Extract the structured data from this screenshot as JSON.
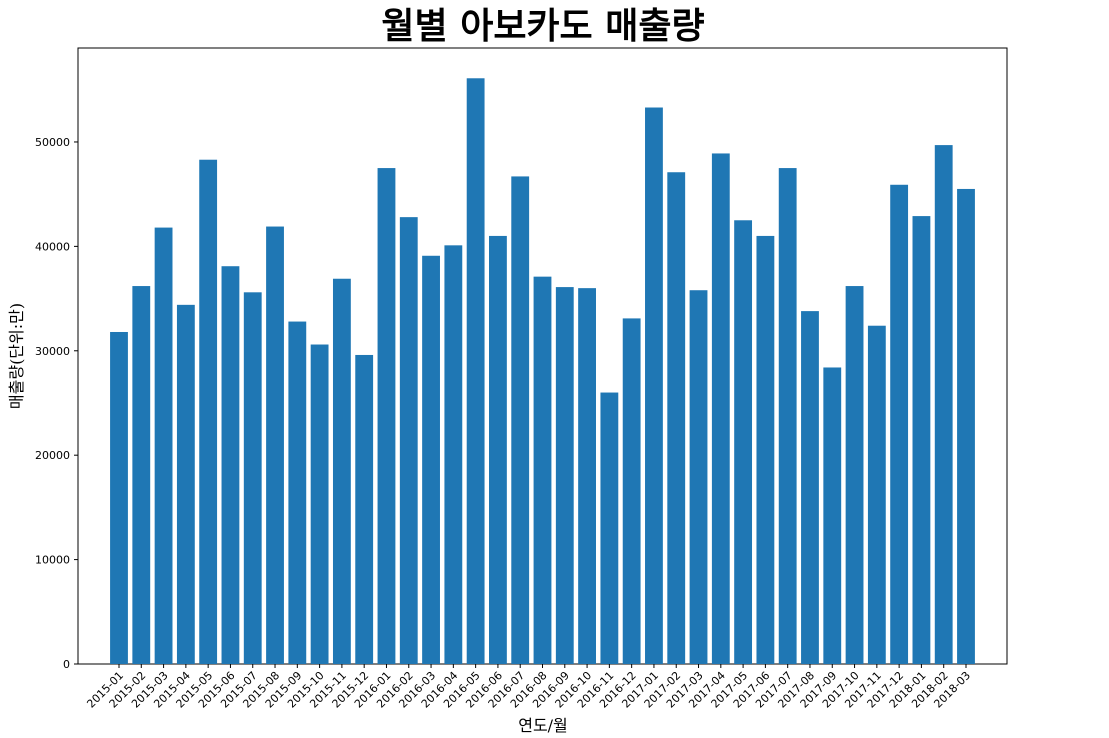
{
  "chart_data": {
    "type": "bar",
    "title": "월별 아보카도 매출량",
    "xlabel": "연도/월",
    "ylabel": "매출량(단위:만)",
    "ylim": [
      0,
      59000
    ],
    "yticks": [
      0,
      10000,
      20000,
      30000,
      40000,
      50000
    ],
    "ytick_labels": [
      "0",
      "10000",
      "20000",
      "30000",
      "40000",
      "50000"
    ],
    "grid": false,
    "bar_color": "#1f77b4",
    "categories": [
      "2015-01",
      "2015-02",
      "2015-03",
      "2015-04",
      "2015-05",
      "2015-06",
      "2015-07",
      "2015-08",
      "2015-09",
      "2015-10",
      "2015-11",
      "2015-12",
      "2016-01",
      "2016-02",
      "2016-03",
      "2016-04",
      "2016-05",
      "2016-06",
      "2016-07",
      "2016-08",
      "2016-09",
      "2016-10",
      "2016-11",
      "2016-12",
      "2017-01",
      "2017-02",
      "2017-03",
      "2017-04",
      "2017-05",
      "2017-06",
      "2017-07",
      "2017-08",
      "2017-09",
      "2017-10",
      "2017-11",
      "2017-12",
      "2018-01",
      "2018-02",
      "2018-03"
    ],
    "values": [
      31800,
      36200,
      41800,
      34400,
      48300,
      38100,
      35600,
      41900,
      32800,
      30600,
      36900,
      29600,
      47500,
      42800,
      39100,
      40100,
      56100,
      41000,
      46700,
      37100,
      36100,
      36000,
      26000,
      33100,
      53300,
      47100,
      35800,
      48900,
      42500,
      41000,
      47500,
      33800,
      28400,
      36200,
      32400,
      45900,
      42900,
      49700,
      45500
    ]
  }
}
